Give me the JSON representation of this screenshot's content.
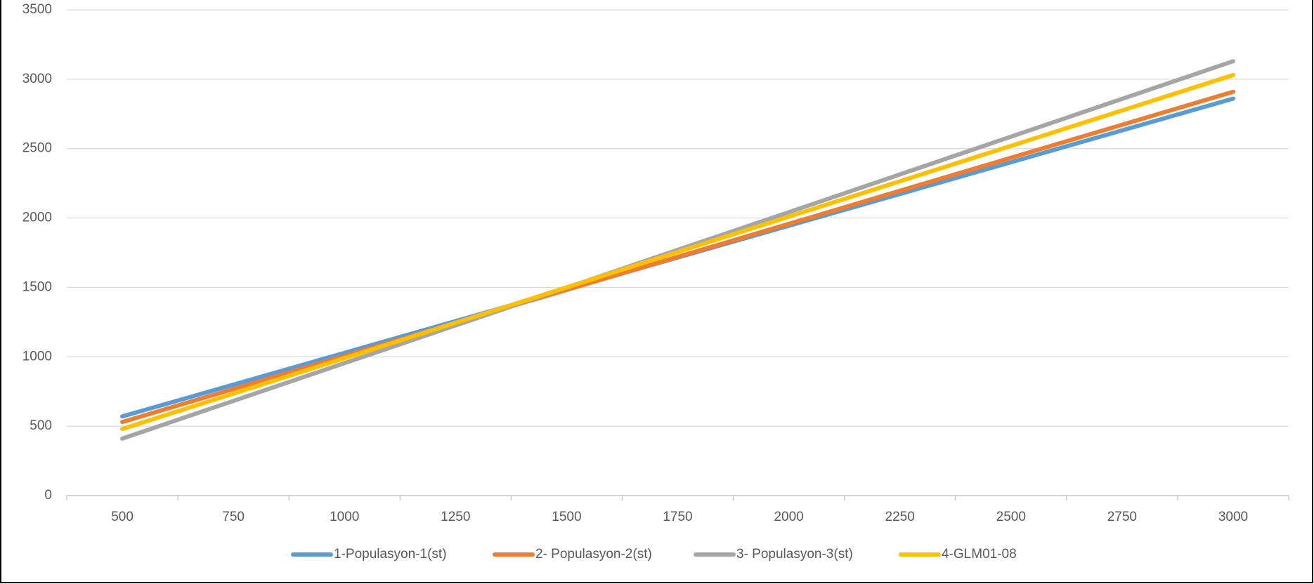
{
  "chart_data": {
    "type": "line",
    "categories": [
      500,
      750,
      1000,
      1250,
      1500,
      1750,
      2000,
      2250,
      2500,
      2750,
      3000
    ],
    "series": [
      {
        "name": "1-Populasyon-1(st)",
        "color": "#5b9bd5",
        "values": [
          570,
          799,
          1028,
          1257,
          1486,
          1715,
          1944,
          2173,
          2402,
          2631,
          2860
        ]
      },
      {
        "name": "2- Populasyon-2(st)",
        "color": "#ed7d31",
        "values": [
          530,
          768,
          1006,
          1244,
          1482,
          1720,
          1958,
          2196,
          2434,
          2672,
          2910
        ]
      },
      {
        "name": "3- Populasyon-3(st)",
        "color": "#a5a5a5",
        "values": [
          410,
          682,
          954,
          1226,
          1498,
          1770,
          2042,
          2314,
          2586,
          2858,
          3130
        ]
      },
      {
        "name": "4-GLM01-08",
        "color": "#ffc000",
        "values": [
          480,
          735,
          990,
          1245,
          1500,
          1755,
          2010,
          2265,
          2520,
          2775,
          3030
        ]
      }
    ],
    "ylim": [
      0,
      3500
    ],
    "yticks": [
      0,
      500,
      1000,
      1500,
      2000,
      2500,
      3000,
      3500
    ],
    "grid": true,
    "legend": "bottom"
  }
}
